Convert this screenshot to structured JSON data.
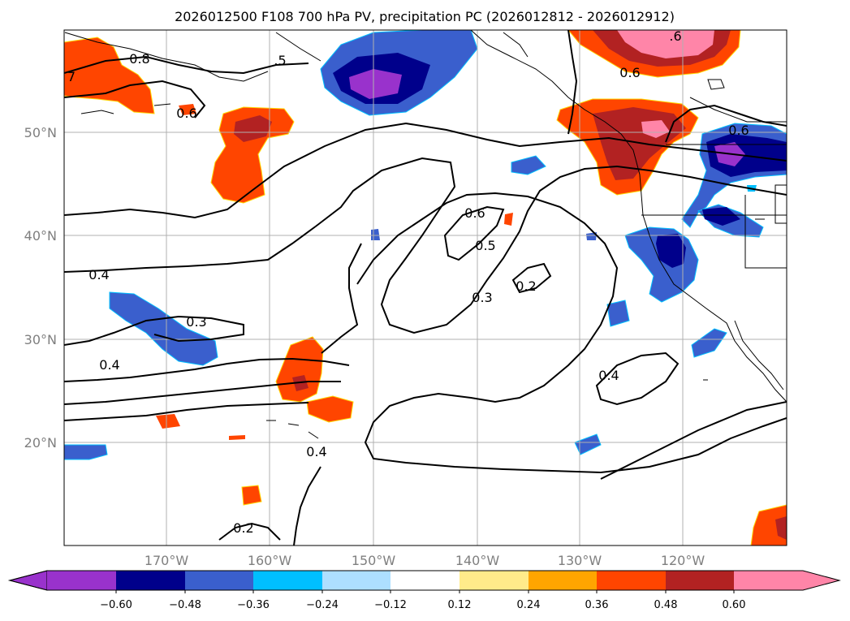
{
  "title": "2026012500 F108 700 hPa PV, precipitation PC (2026012812 - 2026012912)",
  "lat_labels": [
    "50°N",
    "40°N",
    "30°N",
    "20°N"
  ],
  "lon_labels": [
    "170°W",
    "160°W",
    "150°W",
    "140°W",
    "130°W",
    "120°W"
  ],
  "colorbar": {
    "tick_labels": [
      "−0.60",
      "−0.48",
      "−0.36",
      "−0.24",
      "−0.12",
      "0.12",
      "0.24",
      "0.36",
      "0.48",
      "0.60"
    ],
    "colors": [
      "#9932CC",
      "#00008B",
      "#3A5FCD",
      "#00BFFF",
      "#ADDFFF",
      "#FFFFFF",
      "#FFEB8A",
      "#FFA500",
      "#FF4500",
      "#B22222",
      "#FF85A8"
    ]
  },
  "contour_labels": [
    "0.8",
    "7",
    ".5",
    "0.6",
    ".6",
    "0.6",
    "0.6",
    "0.4",
    "0.5",
    "0.3",
    "0.2",
    "0.3",
    "0.4",
    "0.4",
    "0.4",
    "0.2",
    "0.6"
  ]
}
